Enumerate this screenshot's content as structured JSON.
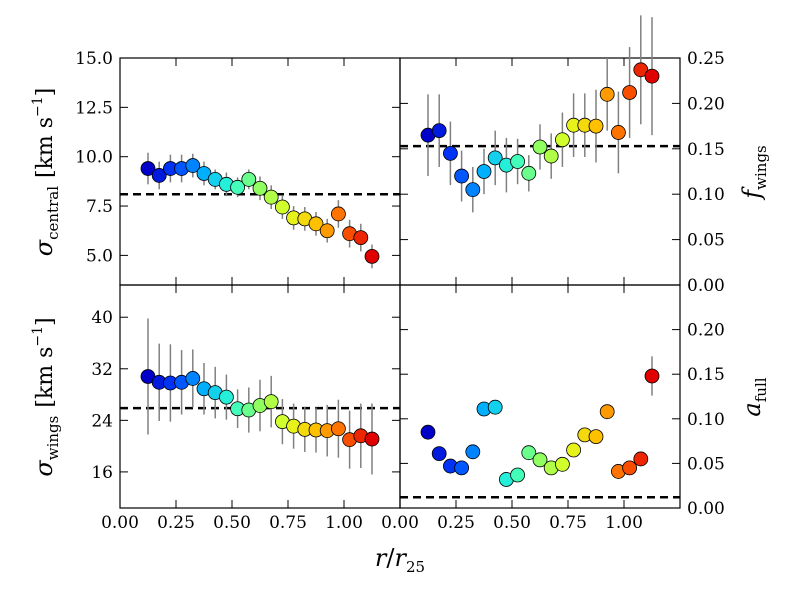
{
  "chart_data": [
    {
      "type": "scatter",
      "panel": "top-left",
      "ylabel_main": "σ",
      "ylabel_sub": "central",
      "ylabel_unit": "[km s",
      "ylabel_unit_sup": "−1",
      "ylabel_unit_close": "]",
      "ylim": [
        3.5,
        15
      ],
      "yticks": [
        5.0,
        7.5,
        10.0,
        12.5,
        15.0
      ],
      "ytick_labels": [
        "5.0",
        "7.5",
        "10.0",
        "12.5",
        "15.0"
      ],
      "ytick_side": "left",
      "reference_line": 8.1,
      "x": [
        0.125,
        0.175,
        0.225,
        0.275,
        0.325,
        0.375,
        0.425,
        0.475,
        0.525,
        0.575,
        0.625,
        0.675,
        0.725,
        0.775,
        0.825,
        0.875,
        0.925,
        0.975,
        1.025,
        1.075,
        1.125
      ],
      "y": [
        9.4,
        9.05,
        9.4,
        9.4,
        9.55,
        9.15,
        8.85,
        8.6,
        8.45,
        8.85,
        8.4,
        7.95,
        7.45,
        6.9,
        6.85,
        6.6,
        6.25,
        7.1,
        6.1,
        5.9,
        4.95
      ],
      "yerr": [
        0.8,
        0.7,
        0.7,
        0.7,
        0.6,
        0.6,
        0.5,
        0.6,
        0.5,
        0.5,
        0.6,
        0.6,
        0.6,
        0.6,
        0.6,
        0.6,
        0.6,
        0.7,
        0.7,
        0.7,
        0.6
      ]
    },
    {
      "type": "scatter",
      "panel": "top-right",
      "ylabel_main": "f",
      "ylabel_sub": "wings",
      "ylim": [
        0,
        0.25
      ],
      "yticks": [
        0.0,
        0.05,
        0.1,
        0.15,
        0.2,
        0.25
      ],
      "ytick_labels": [
        "0.00",
        "0.05",
        "0.10",
        "0.15",
        "0.20",
        "0.25"
      ],
      "ytick_side": "right",
      "reference_line": 0.153,
      "x": [
        0.125,
        0.175,
        0.225,
        0.275,
        0.325,
        0.375,
        0.425,
        0.475,
        0.525,
        0.575,
        0.625,
        0.675,
        0.725,
        0.775,
        0.825,
        0.875,
        0.925,
        0.975,
        1.025,
        1.075,
        1.125
      ],
      "y": [
        0.165,
        0.17,
        0.145,
        0.12,
        0.105,
        0.125,
        0.14,
        0.132,
        0.136,
        0.123,
        0.152,
        0.142,
        0.16,
        0.176,
        0.176,
        0.175,
        0.21,
        0.168,
        0.212,
        0.237,
        0.23
      ],
      "yerr": [
        0.045,
        0.04,
        0.035,
        0.028,
        0.025,
        0.025,
        0.03,
        0.03,
        0.025,
        0.02,
        0.025,
        0.025,
        0.03,
        0.035,
        0.035,
        0.04,
        0.04,
        0.045,
        0.05,
        0.06,
        0.065
      ]
    },
    {
      "type": "scatter",
      "panel": "bottom-left",
      "ylabel_main": "σ",
      "ylabel_sub": "wings",
      "ylabel_unit": "[km s",
      "ylabel_unit_sup": "−1",
      "ylabel_unit_close": "]",
      "ylim": [
        10.4,
        45
      ],
      "yticks": [
        16,
        24,
        32,
        40
      ],
      "ytick_labels": [
        "16",
        "24",
        "32",
        "40"
      ],
      "ytick_side": "left",
      "reference_line": 25.9,
      "x": [
        0.125,
        0.175,
        0.225,
        0.275,
        0.325,
        0.375,
        0.425,
        0.475,
        0.525,
        0.575,
        0.625,
        0.675,
        0.725,
        0.775,
        0.825,
        0.875,
        0.925,
        0.975,
        1.025,
        1.075,
        1.125
      ],
      "y": [
        30.8,
        29.9,
        29.8,
        29.9,
        30.5,
        28.9,
        28.3,
        27.6,
        25.8,
        25.6,
        26.3,
        26.9,
        23.8,
        23.1,
        22.6,
        22.5,
        22.4,
        22.7,
        21.0,
        21.6,
        21.1
      ],
      "yerr": [
        9.0,
        6.0,
        6.0,
        5.0,
        4.5,
        4.0,
        4.0,
        3.5,
        3.0,
        3.5,
        4.0,
        4.0,
        3.5,
        3.5,
        3.5,
        3.5,
        4.0,
        4.5,
        4.5,
        5.0,
        5.5
      ]
    },
    {
      "type": "scatter",
      "panel": "bottom-right",
      "ylabel_main": "a",
      "ylabel_sub": "full",
      "ylim": [
        0,
        0.25
      ],
      "yticks": [
        0.0,
        0.05,
        0.1,
        0.15,
        0.2
      ],
      "ytick_labels": [
        "0.00",
        "0.05",
        "0.10",
        "0.15",
        "0.20"
      ],
      "ytick_side": "right",
      "reference_line": 0.012,
      "x": [
        0.125,
        0.175,
        0.225,
        0.275,
        0.325,
        0.375,
        0.425,
        0.475,
        0.525,
        0.575,
        0.625,
        0.675,
        0.725,
        0.775,
        0.825,
        0.875,
        0.925,
        0.975,
        1.025,
        1.075,
        1.125
      ],
      "y": [
        0.085,
        0.061,
        0.047,
        0.045,
        0.063,
        0.111,
        0.113,
        0.032,
        0.037,
        0.062,
        0.054,
        0.045,
        0.049,
        0.065,
        0.082,
        0.08,
        0.108,
        0.041,
        0.045,
        0.055,
        0.148
      ],
      "yerr": [
        0.007,
        0,
        0,
        0,
        0,
        0,
        0,
        0,
        0,
        0,
        0,
        0,
        0,
        0,
        0,
        0,
        0,
        0,
        0,
        0,
        0.022
      ]
    }
  ],
  "shared_x": {
    "xlim": [
      0,
      1.25
    ],
    "xticks": [
      0.0,
      0.25,
      0.5,
      0.75,
      1.0
    ],
    "xtick_labels_left": [
      "0.00",
      "0.25",
      "0.50",
      "0.75",
      "1.00"
    ],
    "xtick_labels_right": [
      "0.00",
      "0.25",
      "0.50",
      "0.75",
      "1.00"
    ],
    "xlabel_r": "r",
    "xlabel_slash": "/",
    "xlabel_sub_base": "r",
    "xlabel_sub": "25"
  },
  "colors": {
    "errorbar": "#808080",
    "reference_line": "#000000",
    "colormap": [
      "#0000c8",
      "#0040ff",
      "#00b0ff",
      "#30ffd0",
      "#90ff60",
      "#e0ff20",
      "#ffc000",
      "#ff6000",
      "#e00000"
    ]
  }
}
